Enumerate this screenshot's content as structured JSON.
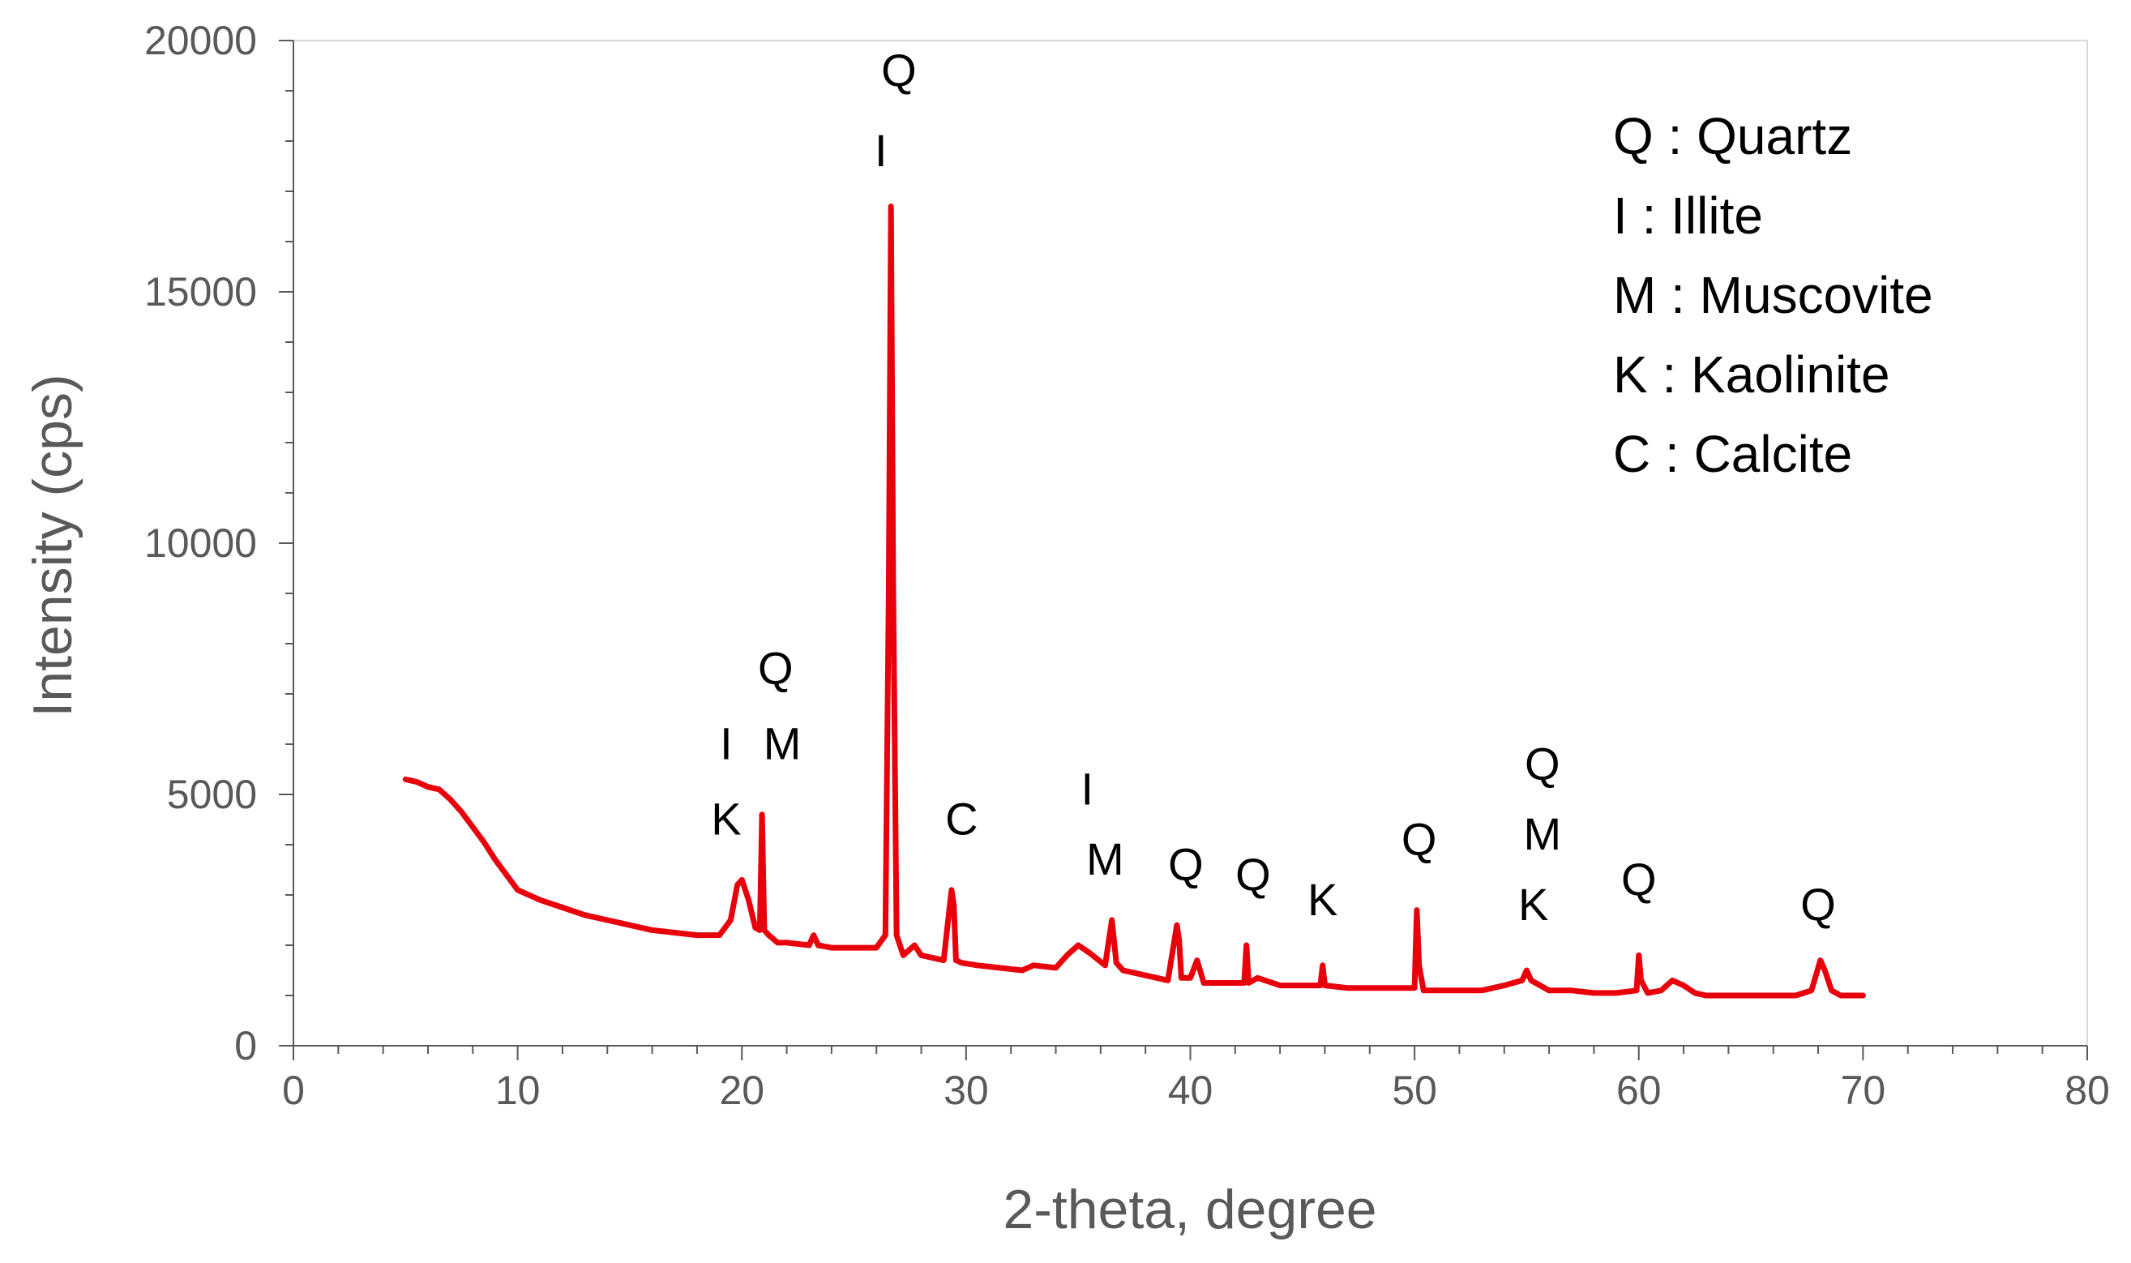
{
  "chart_data": {
    "type": "line",
    "title": "",
    "xlabel": "2-theta, degree",
    "ylabel": "Intensity (cps)",
    "xlim": [
      0,
      80
    ],
    "ylim": [
      0,
      20000
    ],
    "xticks": [
      "0",
      "10",
      "20",
      "30",
      "40",
      "50",
      "60",
      "70",
      "80"
    ],
    "yticks": [
      "0",
      "5000",
      "10000",
      "15000",
      "20000"
    ],
    "grid": false,
    "legend_position": "top-right",
    "series_color": "#e8000b",
    "series": [
      {
        "x": [
          5.0,
          5.5,
          6.0,
          6.5,
          7.0,
          7.5,
          8.0,
          8.5,
          9.0,
          9.5,
          10.0,
          11.0,
          12.0,
          13.0,
          14.0,
          15.0,
          16.0,
          17.0,
          18.0,
          19.0,
          19.5,
          19.8,
          20.0,
          20.3,
          20.6,
          20.8,
          20.9,
          21.0,
          21.2,
          21.6,
          22.0,
          23.0,
          23.2,
          23.4,
          24.0,
          25.0,
          26.0,
          26.4,
          26.55,
          26.65,
          26.75,
          26.9,
          27.2,
          27.7,
          28.0,
          29.0,
          29.35,
          29.45,
          29.55,
          29.8,
          30.5,
          31.5,
          32.5,
          33.0,
          34.0,
          34.5,
          35.0,
          35.5,
          36.2,
          36.5,
          36.7,
          37.0,
          38.0,
          39.0,
          39.4,
          39.5,
          39.6,
          40.0,
          40.3,
          40.6,
          41.5,
          42.4,
          42.5,
          42.6,
          43.0,
          44.0,
          45.0,
          45.8,
          45.9,
          46.0,
          47.0,
          48.0,
          49.0,
          50.0,
          50.1,
          50.2,
          50.4,
          51.0,
          52.0,
          53.0,
          54.0,
          54.8,
          55.0,
          55.2,
          55.6,
          56.0,
          57.0,
          58.0,
          59.0,
          59.9,
          60.0,
          60.1,
          60.4,
          61.0,
          61.5,
          62.0,
          62.5,
          63.0,
          64.0,
          65.0,
          66.0,
          67.0,
          67.7,
          67.9,
          68.1,
          68.3,
          68.6,
          69.0,
          70.0
        ],
        "y": [
          5300,
          5250,
          5150,
          5100,
          4900,
          4650,
          4350,
          4050,
          3700,
          3400,
          3100,
          2900,
          2750,
          2600,
          2500,
          2400,
          2300,
          2250,
          2200,
          2200,
          2500,
          3200,
          3300,
          2900,
          2350,
          2300,
          4600,
          2300,
          2200,
          2050,
          2050,
          2000,
          2200,
          2000,
          1950,
          1950,
          1950,
          2200,
          9000,
          16700,
          9000,
          2200,
          1800,
          2000,
          1800,
          1700,
          3100,
          2800,
          1700,
          1650,
          1600,
          1550,
          1500,
          1600,
          1550,
          1800,
          2000,
          1850,
          1600,
          2500,
          1650,
          1500,
          1400,
          1300,
          2400,
          2100,
          1350,
          1350,
          1700,
          1250,
          1250,
          1250,
          2000,
          1250,
          1350,
          1200,
          1200,
          1200,
          1600,
          1200,
          1150,
          1150,
          1150,
          1150,
          2700,
          1600,
          1100,
          1100,
          1100,
          1100,
          1200,
          1300,
          1500,
          1300,
          1200,
          1100,
          1100,
          1050,
          1050,
          1100,
          1800,
          1300,
          1050,
          1100,
          1300,
          1200,
          1050,
          1000,
          1000,
          1000,
          1000,
          1000,
          1100,
          1400,
          1700,
          1500,
          1100,
          1000,
          1000
        ]
      }
    ],
    "annotations": [
      {
        "x": 19.3,
        "y": 5700,
        "text": "I"
      },
      {
        "x": 19.3,
        "y": 4200,
        "text": "K"
      },
      {
        "x": 21.5,
        "y": 7200,
        "text": "Q"
      },
      {
        "x": 21.8,
        "y": 5700,
        "text": "M"
      },
      {
        "x": 27.0,
        "y": 19100,
        "text": "Q"
      },
      {
        "x": 26.2,
        "y": 17500,
        "text": "I"
      },
      {
        "x": 29.8,
        "y": 4200,
        "text": "C"
      },
      {
        "x": 35.4,
        "y": 4800,
        "text": "I"
      },
      {
        "x": 36.2,
        "y": 3400,
        "text": "M"
      },
      {
        "x": 39.8,
        "y": 3300,
        "text": "Q"
      },
      {
        "x": 42.8,
        "y": 3100,
        "text": "Q"
      },
      {
        "x": 45.9,
        "y": 2600,
        "text": "K"
      },
      {
        "x": 50.2,
        "y": 3800,
        "text": "Q"
      },
      {
        "x": 55.7,
        "y": 5300,
        "text": "Q"
      },
      {
        "x": 55.7,
        "y": 3900,
        "text": "M"
      },
      {
        "x": 55.3,
        "y": 2500,
        "text": "K"
      },
      {
        "x": 60.0,
        "y": 3000,
        "text": "Q"
      },
      {
        "x": 68.0,
        "y": 2500,
        "text": "Q"
      }
    ],
    "legend": [
      "Q : Quartz",
      "I : Illite",
      "M : Muscovite",
      "K : Kaolinite",
      "C : Calcite"
    ]
  }
}
